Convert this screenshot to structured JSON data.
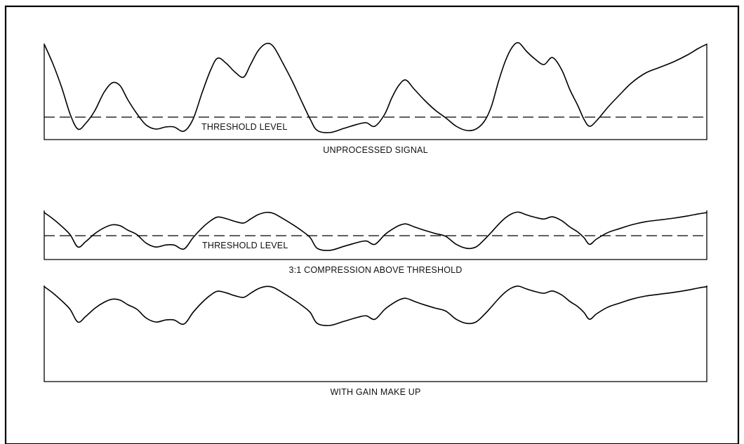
{
  "panels": [
    {
      "key": "unprocessed",
      "threshold_label": "THRESHOLD LEVEL",
      "caption": "UNPROCESSED SIGNAL"
    },
    {
      "key": "compressed",
      "threshold_label": "THRESHOLD LEVEL",
      "caption": "3:1 COMPRESSION ABOVE THRESHOLD"
    },
    {
      "key": "makeup",
      "caption": "WITH GAIN MAKE UP"
    }
  ]
}
